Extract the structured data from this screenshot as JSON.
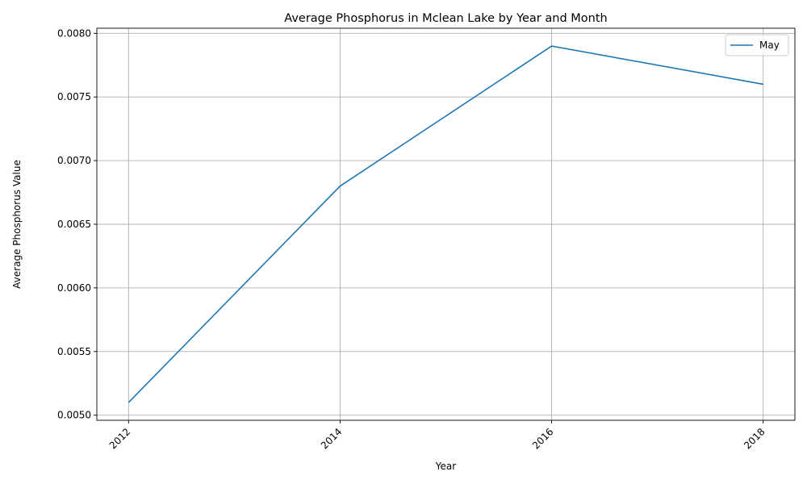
{
  "chart_data": {
    "type": "line",
    "title": "Average Phosphorus in Mclean Lake by Year and Month",
    "xlabel": "Year",
    "ylabel": "Average Phosphorus Value",
    "x": [
      2012,
      2014,
      2016,
      2018
    ],
    "x_tick_labels": [
      "2012",
      "2014",
      "2016",
      "2018"
    ],
    "y_ticks": [
      0.005,
      0.0055,
      0.006,
      0.0065,
      0.007,
      0.0075,
      0.008
    ],
    "y_tick_labels": [
      "0.0050",
      "0.0055",
      "0.0060",
      "0.0065",
      "0.0070",
      "0.0075",
      "0.0080"
    ],
    "xlim": [
      2011.7,
      2018.3
    ],
    "ylim": [
      0.00496,
      0.00804
    ],
    "grid": true,
    "legend_position": "top-right",
    "series": [
      {
        "name": "May",
        "color": "#1f77b4",
        "values": [
          0.0051,
          0.0068,
          0.0079,
          0.0076
        ]
      }
    ]
  }
}
